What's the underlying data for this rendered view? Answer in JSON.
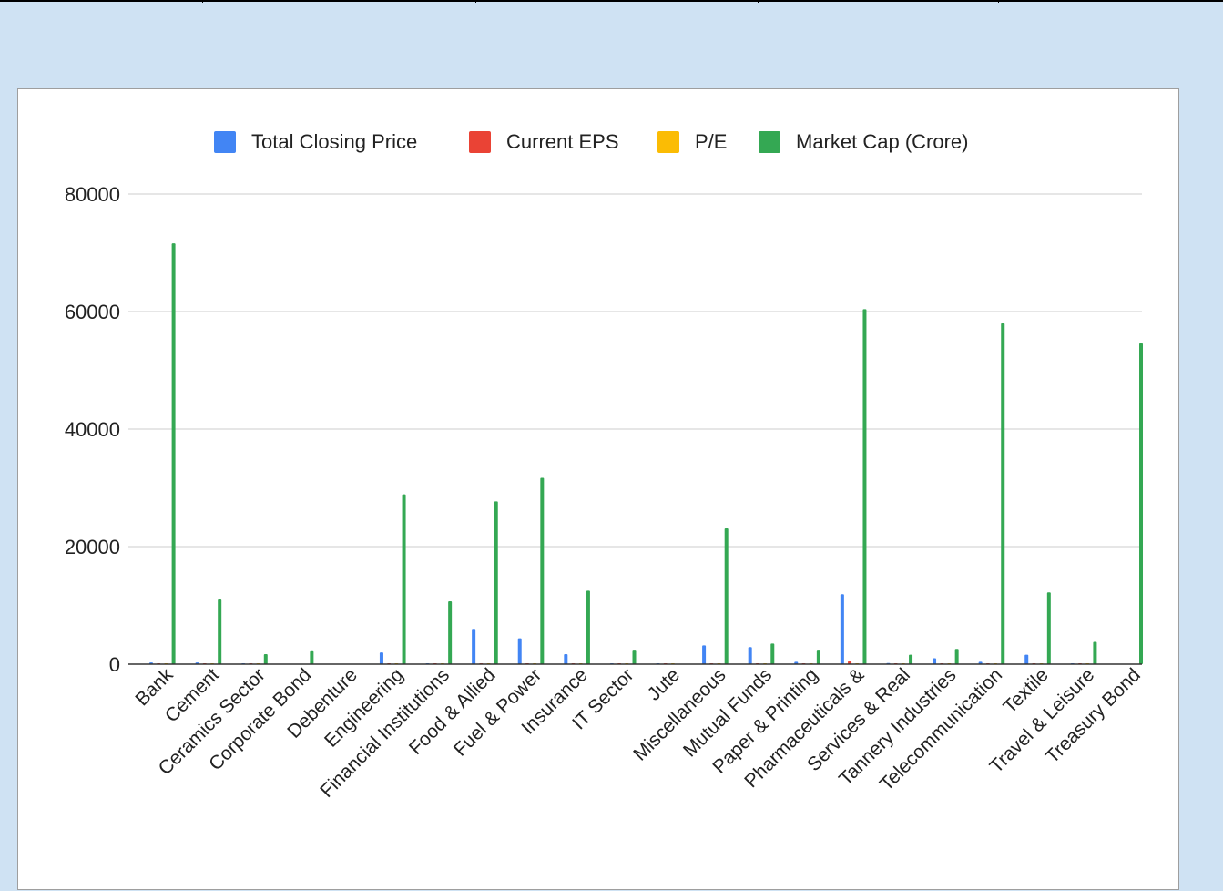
{
  "chart_data": {
    "type": "bar",
    "title": "",
    "xlabel": "",
    "ylabel": "",
    "ylim": [
      0,
      80000
    ],
    "yticks": [
      0,
      20000,
      40000,
      60000,
      80000
    ],
    "grid": true,
    "legend_position": "top",
    "categories": [
      "Bank",
      "Cement",
      "Ceramics Sector",
      "Corporate Bond",
      "Debenture",
      "Engineering",
      "Financial Institutions",
      "Food & Allied",
      "Fuel & Power",
      "Insurance",
      "IT Sector",
      "Jute",
      "Miscellaneous",
      "Mutual Funds",
      "Paper & Printing",
      "Pharmaceuticals &",
      "Services & Real",
      "Tannery Industries",
      "Telecommunication",
      "Textile",
      "Travel & Leisure",
      "Treasury Bond"
    ],
    "series": [
      {
        "name": "Total Closing Price",
        "color": "#4285f4",
        "values": [
          300,
          300,
          100,
          0,
          0,
          2000,
          150,
          6000,
          4400,
          1700,
          100,
          100,
          3200,
          2900,
          400,
          11900,
          200,
          1000,
          400,
          1600,
          50,
          0
        ]
      },
      {
        "name": "Current EPS",
        "color": "#ea4335",
        "values": [
          30,
          20,
          5,
          0,
          0,
          90,
          10,
          130,
          140,
          70,
          5,
          5,
          60,
          70,
          10,
          500,
          10,
          30,
          20,
          50,
          5,
          0
        ]
      },
      {
        "name": "P/E",
        "color": "#fbbc04",
        "values": [
          10,
          20,
          30,
          0,
          0,
          20,
          20,
          25,
          20,
          25,
          30,
          20,
          20,
          10,
          30,
          25,
          30,
          25,
          20,
          20,
          20,
          0
        ]
      },
      {
        "name": "Market Cap (Crore)",
        "color": "#34a853",
        "values": [
          71600,
          11000,
          1700,
          2200,
          0,
          28900,
          10700,
          27700,
          31700,
          12500,
          2300,
          0,
          23100,
          3500,
          2300,
          60400,
          1600,
          2600,
          58000,
          12200,
          3800,
          54600
        ]
      }
    ]
  }
}
